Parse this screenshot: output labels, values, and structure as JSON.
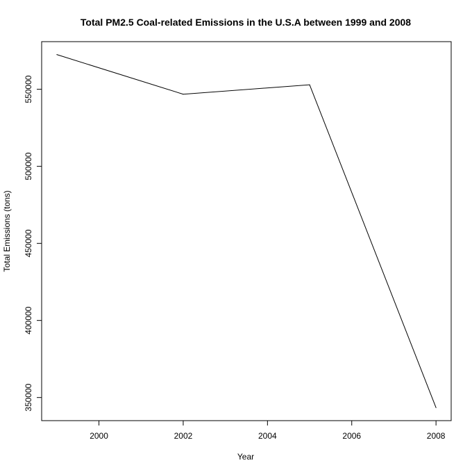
{
  "chart_data": {
    "type": "line",
    "title": "Total PM2.5 Coal-related Emissions in the U.S.A between 1999 and 2008",
    "xlabel": "Year",
    "ylabel": "Total Emissions (tons)",
    "x": [
      1999,
      2002,
      2005,
      2008
    ],
    "series": [
      {
        "values": [
          572500,
          546800,
          552900,
          343400
        ],
        "color": "#000000"
      }
    ],
    "xlim": [
      1998.64,
      2008.36
    ],
    "ylim": [
      334995,
      580895
    ],
    "x_ticks": [
      2000,
      2002,
      2004,
      2006,
      2008
    ],
    "x_tick_labels": [
      "2000",
      "2002",
      "2004",
      "2006",
      "2008"
    ],
    "y_ticks": [
      350000,
      400000,
      450000,
      500000,
      550000
    ],
    "y_tick_labels": [
      "350000",
      "400000",
      "450000",
      "500000",
      "550000"
    ],
    "grid": false,
    "legend": false,
    "colors": {
      "background": "#ffffff",
      "axis": "#000000",
      "line": "#000000"
    }
  }
}
